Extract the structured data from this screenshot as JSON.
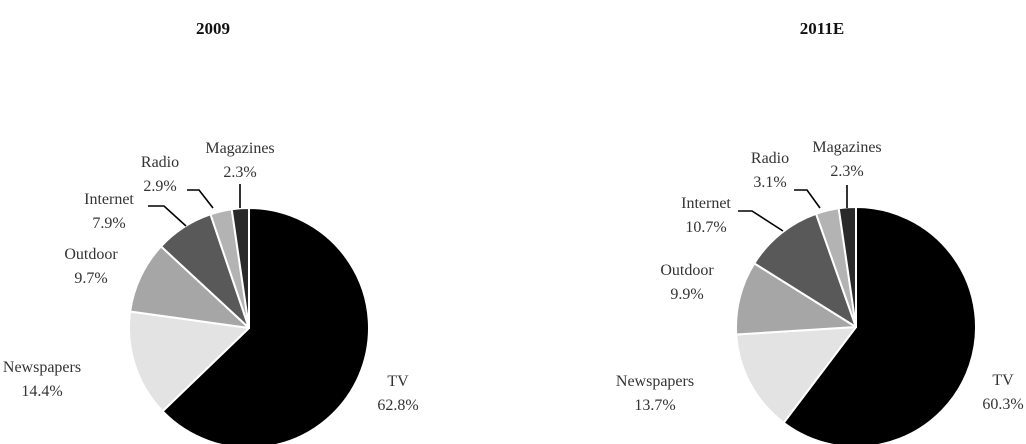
{
  "chart_data": [
    {
      "type": "pie",
      "title": "2009",
      "slices": [
        {
          "label": "TV",
          "value": 62.8,
          "value_label": "62.8%",
          "color": "#000000"
        },
        {
          "label": "Newspapers",
          "value": 14.4,
          "value_label": "14.4%",
          "color": "#e3e3e3"
        },
        {
          "label": "Outdoor",
          "value": 9.7,
          "value_label": "9.7%",
          "color": "#a6a6a6"
        },
        {
          "label": "Internet",
          "value": 7.9,
          "value_label": "7.9%",
          "color": "#595959"
        },
        {
          "label": "Radio",
          "value": 2.9,
          "value_label": "2.9%",
          "color": "#b3b3b3"
        },
        {
          "label": "Magazines",
          "value": 2.3,
          "value_label": "2.3%",
          "color": "#2a2a2a"
        }
      ]
    },
    {
      "type": "pie",
      "title": "2011E",
      "slices": [
        {
          "label": "TV",
          "value": 60.3,
          "value_label": "60.3%",
          "color": "#000000"
        },
        {
          "label": "Newspapers",
          "value": 13.7,
          "value_label": "13.7%",
          "color": "#e3e3e3"
        },
        {
          "label": "Outdoor",
          "value": 9.9,
          "value_label": "9.9%",
          "color": "#a6a6a6"
        },
        {
          "label": "Internet",
          "value": 10.7,
          "value_label": "10.7%",
          "color": "#595959"
        },
        {
          "label": "Radio",
          "value": 3.1,
          "value_label": "3.1%",
          "color": "#b3b3b3"
        },
        {
          "label": "Magazines",
          "value": 2.3,
          "value_label": "2.3%",
          "color": "#2a2a2a"
        }
      ]
    }
  ]
}
